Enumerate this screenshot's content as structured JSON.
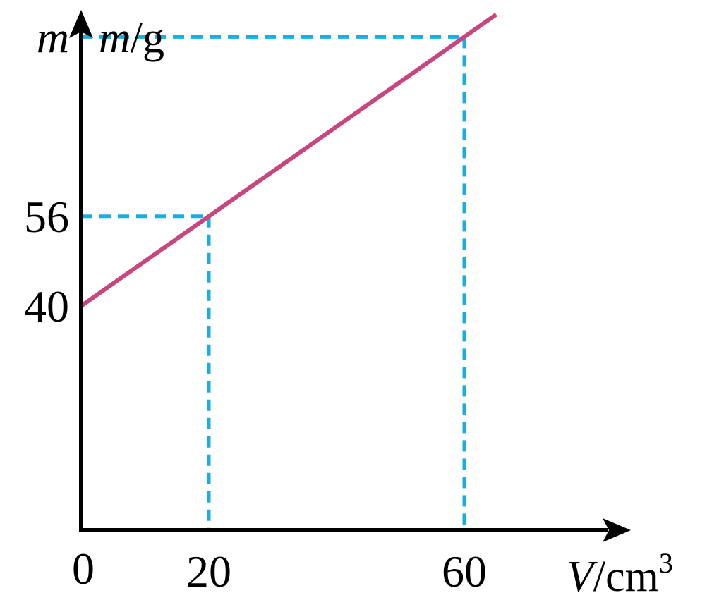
{
  "chart_data": {
    "type": "line",
    "x_axis": {
      "var": "V",
      "sep": "/",
      "unit": "cm",
      "unit_exp": "3",
      "origin_label": "0",
      "ticks": [
        {
          "value": 20,
          "label": "20"
        },
        {
          "value": 60,
          "label": "60"
        }
      ],
      "xlim": [
        0,
        76
      ]
    },
    "y_axis": {
      "var": "m",
      "sep": "/",
      "unit": "g",
      "ticks": [
        {
          "value": 40,
          "label": "40"
        },
        {
          "value": 56,
          "label": "56"
        },
        {
          "value": 88,
          "label": "m"
        }
      ],
      "ylim": [
        0,
        120
      ]
    },
    "series": [
      {
        "x": [
          0,
          65
        ],
        "y": [
          40,
          92
        ],
        "color": "#c8457e"
      }
    ],
    "guides": [
      {
        "x": 20,
        "y": 56,
        "color": "#1aaee0"
      },
      {
        "x": 60,
        "y": 88,
        "color": "#1aaee0"
      }
    ],
    "grid": false,
    "legend": "none"
  }
}
